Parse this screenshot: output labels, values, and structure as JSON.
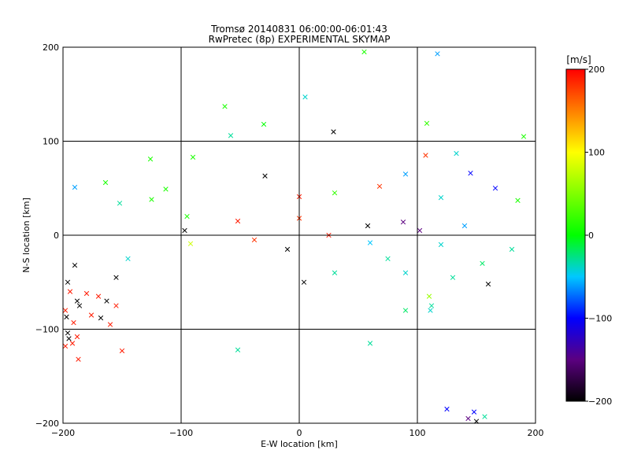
{
  "chart_data": {
    "type": "scatter",
    "title": "Tromsø 20140831 06:00:00-06:01:43",
    "subtitle": "RwPretec (8p) EXPERIMENTAL SKYMAP",
    "xlabel": "E-W location [km]",
    "ylabel": "N-S location [km]",
    "xlim": [
      -200,
      200
    ],
    "ylim": [
      -200,
      200
    ],
    "xticks": [
      -200,
      -100,
      0,
      100,
      200
    ],
    "yticks": [
      -200,
      -100,
      0,
      100,
      200
    ],
    "xtick_labels": [
      "−200",
      "−100",
      "0",
      "100",
      "200"
    ],
    "ytick_labels": [
      "−200",
      "−100",
      "0",
      "100",
      "200"
    ],
    "grid": true,
    "markers": {
      "small": "dot",
      "large": "x"
    },
    "colorbar": {
      "label": "[m/s]",
      "min": -200,
      "max": 200,
      "ticks": [
        200,
        100,
        0,
        -100,
        -200
      ],
      "tick_labels": [
        "200",
        "100",
        "0",
        "−100",
        "−200"
      ],
      "colormap": [
        {
          "value": -200,
          "color": "#000000"
        },
        {
          "value": -150,
          "color": "#5b0080"
        },
        {
          "value": -100,
          "color": "#0000ff"
        },
        {
          "value": -50,
          "color": "#00c8ff"
        },
        {
          "value": 0,
          "color": "#00ff00"
        },
        {
          "value": 100,
          "color": "#ffff00"
        },
        {
          "value": 200,
          "color": "#ff0000"
        }
      ]
    },
    "points": [
      {
        "x": 55,
        "y": 195,
        "v": 10,
        "m": "x"
      },
      {
        "x": 117,
        "y": 193,
        "v": -60,
        "m": "x"
      },
      {
        "x": 5,
        "y": 147,
        "v": -40,
        "m": "x"
      },
      {
        "x": -63,
        "y": 137,
        "v": 10,
        "m": "x"
      },
      {
        "x": -30,
        "y": 118,
        "v": 0,
        "m": "x"
      },
      {
        "x": 108,
        "y": 119,
        "v": 20,
        "m": "x"
      },
      {
        "x": 29,
        "y": 110,
        "v": -200,
        "m": "x"
      },
      {
        "x": 190,
        "y": 105,
        "v": 10,
        "m": "x"
      },
      {
        "x": -58,
        "y": 106,
        "v": -30,
        "m": "x"
      },
      {
        "x": -126,
        "y": 81,
        "v": 10,
        "m": "x"
      },
      {
        "x": -90,
        "y": 83,
        "v": 10,
        "m": "x"
      },
      {
        "x": 107,
        "y": 85,
        "v": 180,
        "m": "x"
      },
      {
        "x": 133,
        "y": 87,
        "v": -40,
        "m": "x"
      },
      {
        "x": -29,
        "y": 63,
        "v": -200,
        "m": "x"
      },
      {
        "x": 90,
        "y": 65,
        "v": -60,
        "m": "x"
      },
      {
        "x": 145,
        "y": 66,
        "v": -100,
        "m": "x"
      },
      {
        "x": -164,
        "y": 56,
        "v": 10,
        "m": "x"
      },
      {
        "x": -190,
        "y": 51,
        "v": -60,
        "m": "x"
      },
      {
        "x": -113,
        "y": 49,
        "v": 10,
        "m": "x"
      },
      {
        "x": 68,
        "y": 52,
        "v": 180,
        "m": "x"
      },
      {
        "x": 166,
        "y": 50,
        "v": -100,
        "m": "x"
      },
      {
        "x": 0,
        "y": 41,
        "v": 190,
        "m": "x"
      },
      {
        "x": -125,
        "y": 38,
        "v": 10,
        "m": "x"
      },
      {
        "x": -152,
        "y": 34,
        "v": -30,
        "m": "x"
      },
      {
        "x": 30,
        "y": 45,
        "v": 20,
        "m": "x"
      },
      {
        "x": 120,
        "y": 40,
        "v": -40,
        "m": "x"
      },
      {
        "x": 185,
        "y": 37,
        "v": 10,
        "m": "x"
      },
      {
        "x": -95,
        "y": 20,
        "v": 10,
        "m": "x"
      },
      {
        "x": -52,
        "y": 15,
        "v": 190,
        "m": "x"
      },
      {
        "x": 0,
        "y": 18,
        "v": 180,
        "m": "x"
      },
      {
        "x": 58,
        "y": 10,
        "v": -200,
        "m": "x"
      },
      {
        "x": 88,
        "y": 14,
        "v": -150,
        "m": "x"
      },
      {
        "x": 140,
        "y": 10,
        "v": -60,
        "m": "x"
      },
      {
        "x": -97,
        "y": 5,
        "v": -200,
        "m": "x"
      },
      {
        "x": 25,
        "y": 0,
        "v": 190,
        "m": "x"
      },
      {
        "x": 102,
        "y": 5,
        "v": -150,
        "m": "x"
      },
      {
        "x": -38,
        "y": -5,
        "v": 180,
        "m": "x"
      },
      {
        "x": -92,
        "y": -9,
        "v": 80,
        "m": "x"
      },
      {
        "x": 60,
        "y": -8,
        "v": -50,
        "m": "x"
      },
      {
        "x": 120,
        "y": -10,
        "v": -40,
        "m": "x"
      },
      {
        "x": 180,
        "y": -15,
        "v": -30,
        "m": "x"
      },
      {
        "x": -10,
        "y": -15,
        "v": -200,
        "m": "x"
      },
      {
        "x": 75,
        "y": -25,
        "v": -30,
        "m": "x"
      },
      {
        "x": 155,
        "y": -30,
        "v": -20,
        "m": "x"
      },
      {
        "x": -145,
        "y": -25,
        "v": -40,
        "m": "x"
      },
      {
        "x": -190,
        "y": -32,
        "v": -200,
        "m": "x"
      },
      {
        "x": 30,
        "y": -40,
        "v": -30,
        "m": "x"
      },
      {
        "x": 90,
        "y": -40,
        "v": -40,
        "m": "x"
      },
      {
        "x": 130,
        "y": -45,
        "v": -30,
        "m": "x"
      },
      {
        "x": -155,
        "y": -45,
        "v": -200,
        "m": "x"
      },
      {
        "x": 4,
        "y": -50,
        "v": -200,
        "m": "x"
      },
      {
        "x": 160,
        "y": -52,
        "v": -200,
        "m": "x"
      },
      {
        "x": -196,
        "y": -50,
        "v": -200,
        "m": "x"
      },
      {
        "x": -194,
        "y": -60,
        "v": 190,
        "m": "x"
      },
      {
        "x": -180,
        "y": -62,
        "v": 190,
        "m": "x"
      },
      {
        "x": -170,
        "y": -65,
        "v": 190,
        "m": "x"
      },
      {
        "x": 110,
        "y": -65,
        "v": 60,
        "m": "x"
      },
      {
        "x": -188,
        "y": -70,
        "v": -200,
        "m": "x"
      },
      {
        "x": -163,
        "y": -70,
        "v": -200,
        "m": "x"
      },
      {
        "x": -155,
        "y": -75,
        "v": 190,
        "m": "x"
      },
      {
        "x": -198,
        "y": -80,
        "v": 190,
        "m": "x"
      },
      {
        "x": -186,
        "y": -75,
        "v": -200,
        "m": "x"
      },
      {
        "x": 90,
        "y": -80,
        "v": -20,
        "m": "x"
      },
      {
        "x": 112,
        "y": -75,
        "v": -30,
        "m": "x"
      },
      {
        "x": -176,
        "y": -85,
        "v": 190,
        "m": "x"
      },
      {
        "x": -197,
        "y": -87,
        "v": -200,
        "m": "x"
      },
      {
        "x": 111,
        "y": -80,
        "v": -40,
        "m": "x"
      },
      {
        "x": -168,
        "y": -88,
        "v": -200,
        "m": "x"
      },
      {
        "x": -191,
        "y": -93,
        "v": 190,
        "m": "x"
      },
      {
        "x": -160,
        "y": -95,
        "v": 190,
        "m": "x"
      },
      {
        "x": -196,
        "y": -104,
        "v": -200,
        "m": "x"
      },
      {
        "x": -195,
        "y": -110,
        "v": -200,
        "m": "x"
      },
      {
        "x": -192,
        "y": -115,
        "v": 190,
        "m": "x"
      },
      {
        "x": -198,
        "y": -118,
        "v": 190,
        "m": "x"
      },
      {
        "x": -188,
        "y": -108,
        "v": 190,
        "m": "x"
      },
      {
        "x": -150,
        "y": -123,
        "v": 190,
        "m": "x"
      },
      {
        "x": -52,
        "y": -122,
        "v": -30,
        "m": "x"
      },
      {
        "x": -187,
        "y": -132,
        "v": 190,
        "m": "x"
      },
      {
        "x": 60,
        "y": -115,
        "v": -30,
        "m": "x"
      },
      {
        "x": 125,
        "y": -185,
        "v": -100,
        "m": "x"
      },
      {
        "x": 148,
        "y": -188,
        "v": -100,
        "m": "x"
      },
      {
        "x": 143,
        "y": -195,
        "v": -150,
        "m": "x"
      },
      {
        "x": 150,
        "y": -198,
        "v": -200,
        "m": "x"
      },
      {
        "x": 157,
        "y": -193,
        "v": -30,
        "m": "x"
      }
    ]
  }
}
